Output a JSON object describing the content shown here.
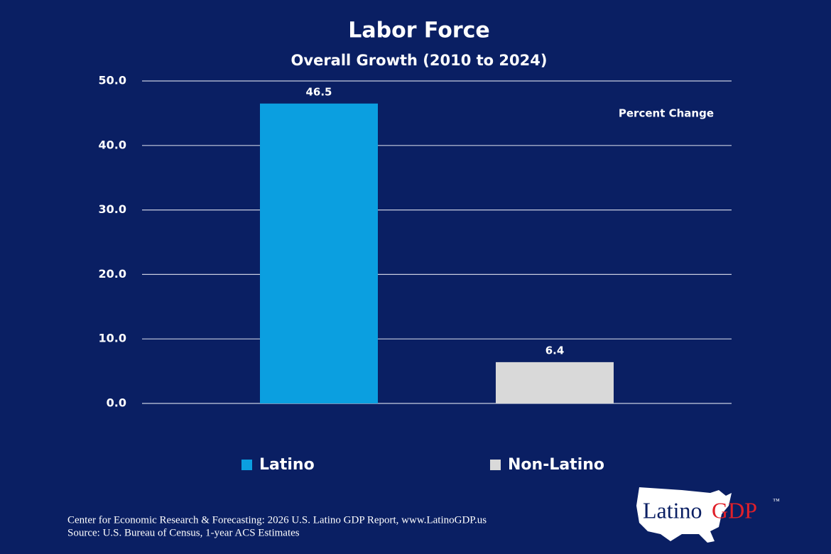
{
  "chart_data": {
    "type": "bar",
    "title": "Labor Force",
    "subtitle": "Overall Growth (2010 to 2024)",
    "annotation": "Percent Change",
    "categories": [
      null
    ],
    "series": [
      {
        "name": "Latino",
        "color": "#0b9fe0",
        "values": [
          46.5
        ]
      },
      {
        "name": "Non-Latino",
        "color": "#d9d9d9",
        "values": [
          6.4
        ]
      }
    ],
    "ylim": [
      0,
      50
    ],
    "yticks": [
      {
        "value": 0,
        "label": "0.0"
      },
      {
        "value": 10,
        "label": "10.0"
      },
      {
        "value": 20,
        "label": "20.0"
      },
      {
        "value": 30,
        "label": "30.0"
      },
      {
        "value": 40,
        "label": "40.0"
      },
      {
        "value": 50,
        "label": "50.0"
      }
    ],
    "grid": true,
    "legend": "bottom"
  },
  "footer": {
    "lines": [
      "Center for Economic Research & Forecasting: 2026 U.S. Latino GDP Report, www.LatinoGDP.us",
      "Source: U.S. Bureau of Census, 1-year ACS Estimates"
    ]
  },
  "logo": {
    "part1": "Latino",
    "part2": "GDP",
    "mark": "™"
  }
}
